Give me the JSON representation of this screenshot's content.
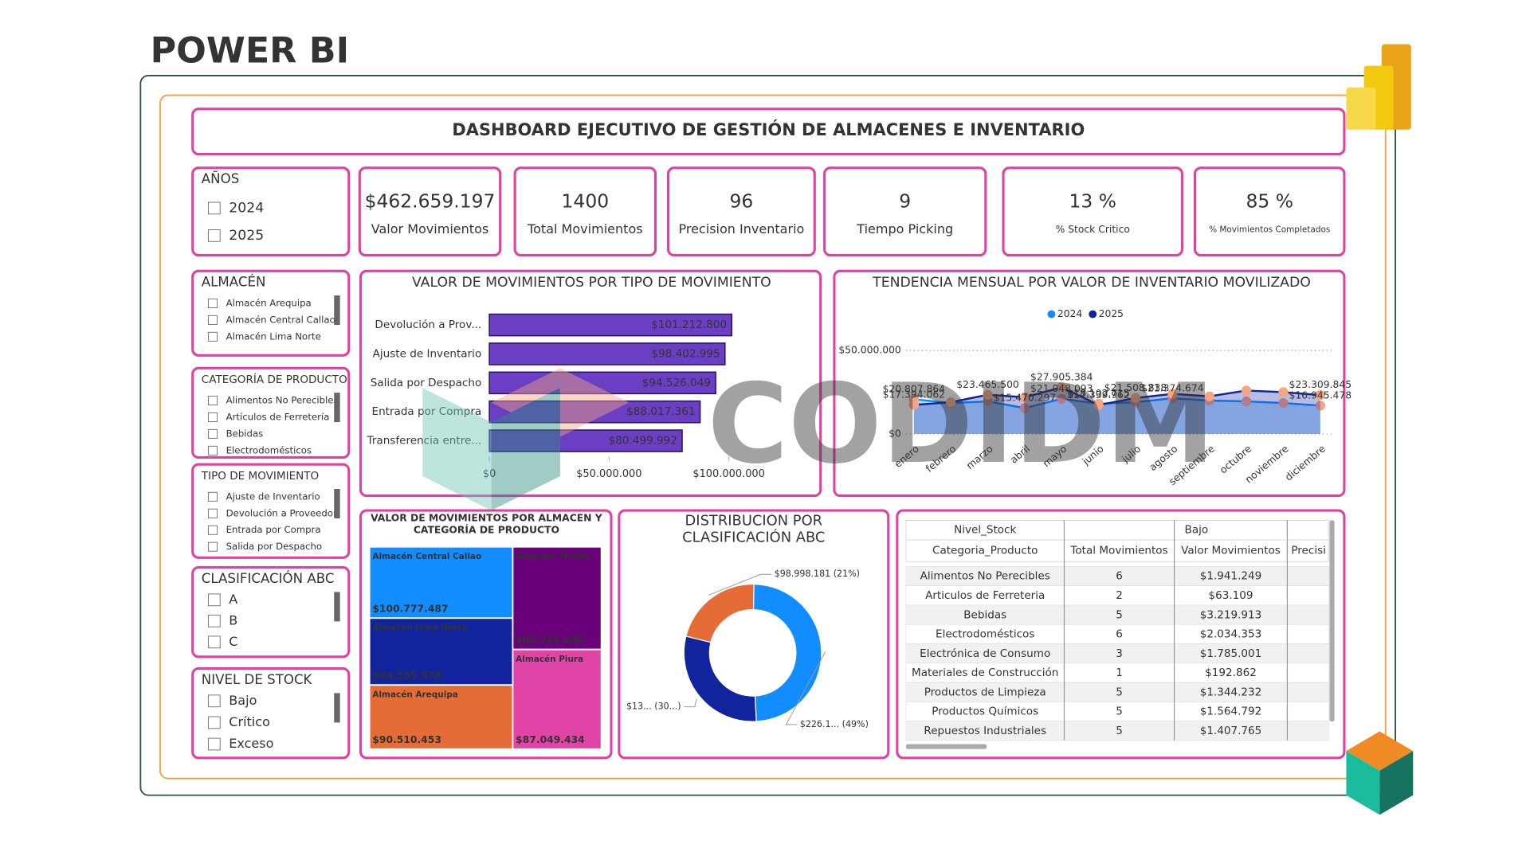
{
  "header": {
    "title": "POWER BI"
  },
  "dashboard": {
    "title": "DASHBOARD EJECUTIVO DE GESTIÓN DE ALMACENES E INVENTARIO"
  },
  "watermark": "CODIDM",
  "slicers": [
    {
      "title": "AÑOS",
      "items": [
        "2024",
        "2025"
      ]
    },
    {
      "title": "ALMACÉN",
      "items": [
        "Almacén Arequipa",
        "Almacén Central Callao",
        "Almacén Lima Norte"
      ]
    },
    {
      "title": "CATEGORÍA DE PRODUCTO",
      "items": [
        "Alimentos No Perecibles",
        "Artículos de Ferretería",
        "Bebidas",
        "Electrodomésticos"
      ]
    },
    {
      "title": "TIPO DE MOVIMIENTO",
      "items": [
        "Ajuste de Inventario",
        "Devolución a Proveedor",
        "Entrada por Compra",
        "Salida por Despacho"
      ]
    },
    {
      "title": "CLASIFICACIÓN ABC",
      "items": [
        "A",
        "B",
        "C"
      ]
    },
    {
      "title": "NIVEL DE STOCK",
      "items": [
        "Bajo",
        "Crítico",
        "Exceso"
      ]
    }
  ],
  "kpis": [
    {
      "value": "$462.659.197",
      "label": "Valor Movimientos"
    },
    {
      "value": "1400",
      "label": "Total Movimientos"
    },
    {
      "value": "96",
      "label": "Precision Inventario"
    },
    {
      "value": "9",
      "label": "Tiempo Picking"
    },
    {
      "value": "13 %",
      "label": "% Stock Critico"
    },
    {
      "value": "85 %",
      "label": "% Movimientos Completados"
    }
  ],
  "chart_data": [
    {
      "type": "hbar",
      "title": "VALOR DE MOVIMIENTOS POR TIPO DE MOVIMIENTO",
      "categories": [
        "Devolución a Prov...",
        "Ajuste de Inventario",
        "Salida por Despacho",
        "Entrada por Compra",
        "Transferencia entre..."
      ],
      "values": [
        101212800,
        98402995,
        94526049,
        88017361,
        80499992
      ],
      "value_labels": [
        "$101.212.800",
        "$98.402.995",
        "$94.526.049",
        "$88.017.361",
        "$80.499.992"
      ],
      "color": "#6b3fc4",
      "xlim": [
        0,
        135000000
      ],
      "xticks": [
        {
          "value": 0,
          "label": "$0"
        },
        {
          "value": 50000000,
          "label": "$50.000.000"
        },
        {
          "value": 100000000,
          "label": "$100.000.000"
        }
      ]
    },
    {
      "type": "line",
      "title": "TENDENCIA MENSUAL POR VALOR DE INVENTARIO MOVILIZADO",
      "categories": [
        "enero",
        "febrero",
        "marzo",
        "abril",
        "mayo",
        "junio",
        "julio",
        "agosto",
        "septiembre",
        "octubre",
        "noviembre",
        "diciembre"
      ],
      "series": [
        {
          "name": "2024",
          "color": "#118dff",
          "values": [
            20807864,
            18500000,
            19500000,
            15470297,
            21048093,
            18102715,
            19000000,
            21374674,
            20000000,
            19500000,
            18500000,
            16945478
          ],
          "value_labels": [
            "$20.807.864",
            null,
            null,
            "$15.470.297",
            "$21.048.093",
            "$18.102.715",
            null,
            "$21.374.674",
            null,
            null,
            null,
            "$16.945.478"
          ]
        },
        {
          "name": "2025",
          "color": "#12239e",
          "values": [
            17394062,
            19000000,
            23465500,
            22000000,
            27905384,
            17339962,
            21508838,
            24000000,
            22500000,
            26000000,
            25000000,
            23309845
          ],
          "value_labels": [
            "$17.394.062",
            null,
            "$23.465.500",
            null,
            "$27.905.384",
            "$17.339.962",
            "$21.508.838",
            null,
            null,
            null,
            null,
            "$23.309.845"
          ]
        }
      ],
      "marker_color": "#f4a582",
      "ylim": [
        0,
        60000000
      ],
      "yticks": [
        {
          "value": 0,
          "label": "$0"
        },
        {
          "value": 50000000,
          "label": "$50.000.000"
        }
      ],
      "grid": true,
      "legend": "top"
    },
    {
      "type": "treemap",
      "title": "VALOR DE MOVIMIENTOS POR ALMACÉN Y CATEGORÍA DE PRODUCTO",
      "categories": [
        "Almacén Central Callao",
        "Almacén Lima Norte",
        "Almacén Arequipa",
        "Almacén Trujillo",
        "Almacén Piura"
      ],
      "values": [
        100777487,
        94555978,
        90510453,
        89765845,
        87049434
      ],
      "value_labels": [
        "$100.777.487",
        "$94.555.978",
        "$90.510.453",
        "$89.765.845",
        "$87.049.434"
      ],
      "colors": [
        "#118dff",
        "#12239e",
        "#e66c37",
        "#6b007b",
        "#e044a7"
      ]
    },
    {
      "type": "donut",
      "title": "DISTRIBUCIÓN POR CLASIFICACIÓN ABC",
      "values": [
        98998181,
        226100000,
        137561016
      ],
      "value_labels": [
        "$98.998.181 (21%)",
        "$226.1... (49%)",
        "$13... (30...)"
      ],
      "colors": [
        "#e66c37",
        "#118dff",
        "#12239e"
      ]
    }
  ],
  "table": {
    "group_header": [
      "Nivel_Stock",
      "Bajo"
    ],
    "columns": [
      "Categoria_Producto",
      "Total Movimientos",
      "Valor Movimientos",
      "Precisi"
    ],
    "rows": [
      [
        "Alimentos No Perecibles",
        6,
        "$1.941.249"
      ],
      [
        "Articulos de Ferreteria",
        2,
        "$63.109"
      ],
      [
        "Bebidas",
        5,
        "$3.219.913"
      ],
      [
        "Electrodomésticos",
        6,
        "$2.034.353"
      ],
      [
        "Electrónica de Consumo",
        3,
        "$1.785.001"
      ],
      [
        "Materiales de Construcción",
        1,
        "$192.862"
      ],
      [
        "Productos de Limpieza",
        5,
        "$1.344.232"
      ],
      [
        "Productos Químicos",
        5,
        "$1.564.792"
      ],
      [
        "Repuestos Industriales",
        5,
        "$1.407.765"
      ]
    ]
  }
}
